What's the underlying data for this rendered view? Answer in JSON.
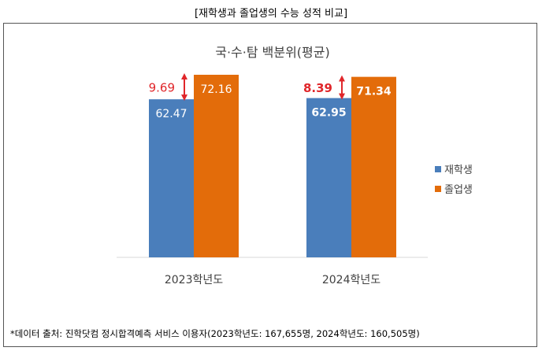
{
  "caption": "[재학생과 졸업생의 수능 성적 비교]",
  "footnote": "*데이터 출처: 진학닷컴 정시합격예측 서비스 이용자(2023학년도: 167,655명, 2024학년도: 160,505명)",
  "chart_data": {
    "type": "bar",
    "title": "국·수·탐 백분위(평균)",
    "categories": [
      "2023학년도",
      "2024학년도"
    ],
    "series": [
      {
        "name": "재학생",
        "values": [
          62.47,
          62.95
        ],
        "color": "#4a7ebb"
      },
      {
        "name": "졸업생",
        "values": [
          72.16,
          71.34
        ],
        "color": "#e36c0a"
      }
    ],
    "value_labels": [
      [
        "62.47",
        "62.95"
      ],
      [
        "72.16",
        "71.34"
      ]
    ],
    "differences": [
      "9.69",
      "8.39"
    ],
    "difference_color": "#e0262a",
    "legend_position": "right",
    "grid": false,
    "ylim": [
      0,
      100
    ]
  }
}
